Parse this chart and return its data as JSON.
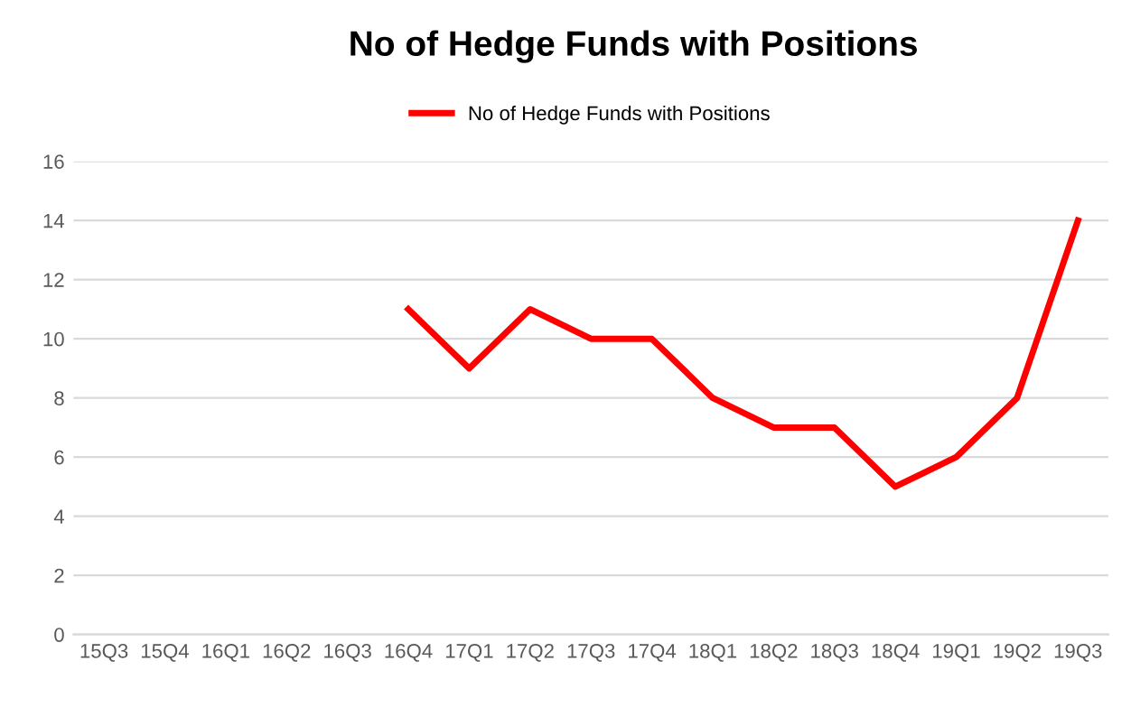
{
  "chart_data": {
    "type": "line",
    "title": "No of Hedge Funds with Positions",
    "categories": [
      "15Q3",
      "15Q4",
      "16Q1",
      "16Q2",
      "16Q3",
      "16Q4",
      "17Q1",
      "17Q2",
      "17Q3",
      "17Q4",
      "18Q1",
      "18Q2",
      "18Q3",
      "18Q4",
      "19Q1",
      "19Q2",
      "19Q3"
    ],
    "series": [
      {
        "name": "No of Hedge Funds with Positions",
        "color": "#ff0000",
        "values": [
          null,
          null,
          null,
          null,
          null,
          11,
          9,
          11,
          10,
          10,
          8,
          7,
          7,
          5,
          6,
          8,
          14
        ]
      }
    ],
    "ylim": [
      0,
      16
    ],
    "yticks": [
      0,
      2,
      4,
      6,
      8,
      10,
      12,
      14,
      16
    ],
    "grid": "y",
    "legend": "top",
    "marker": "none",
    "line_style": "solid"
  }
}
